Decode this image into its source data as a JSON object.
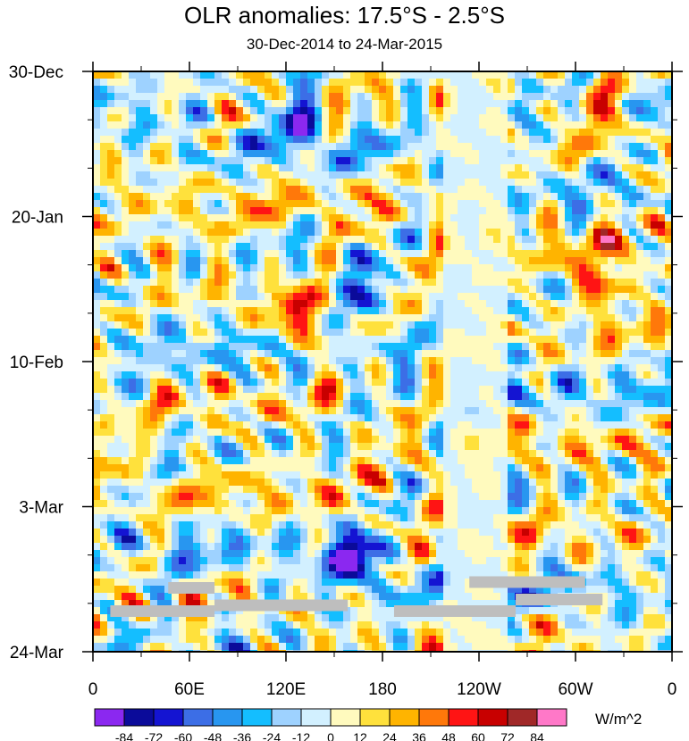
{
  "chart_data": {
    "type": "heatmap",
    "title": "OLR anomalies: 17.5°S - 2.5°S",
    "subtitle": "30-Dec-2014 to 24-Mar-2015",
    "x_ticks": [
      "0",
      "60E",
      "120E",
      "180",
      "120W",
      "60W",
      "0"
    ],
    "x_range_deg_east": [
      0,
      360
    ],
    "y_ticks": [
      "30-Dec",
      "20-Jan",
      "10-Feb",
      "3-Mar",
      "24-Mar"
    ],
    "y_range": [
      "2014-12-30",
      "2015-03-24"
    ],
    "y_direction": "time increases downward",
    "units": "W/m^2",
    "colorbar_levels": [
      -84,
      -72,
      -60,
      -48,
      -36,
      -24,
      -12,
      0,
      12,
      24,
      36,
      48,
      60,
      72,
      84
    ],
    "colorbar_labels": [
      "-84",
      "-72",
      "-60",
      "-48",
      "-36",
      "-24",
      "-12",
      "0",
      "12",
      "24",
      "36",
      "48",
      "60",
      "72",
      "84"
    ],
    "colorbar_colors": [
      "#8b28f0",
      "#0b0b9a",
      "#1414d2",
      "#3c6ee6",
      "#2896f0",
      "#14beff",
      "#9ed2ff",
      "#d2f0ff",
      "#fffabe",
      "#ffe13c",
      "#ffb400",
      "#ff780a",
      "#ff1414",
      "#c80000",
      "#a02828",
      "#ff78c8"
    ],
    "missing_color": "#bebebe",
    "grid": false,
    "features": [
      {
        "note": "strong negative anomaly",
        "lon": 160,
        "date": "2015-03-10",
        "value": -84
      },
      {
        "note": "negative anomaly cluster",
        "lon": 125,
        "date": "2015-01-05",
        "value": -60
      },
      {
        "note": "negative anomaly cluster",
        "lon": 165,
        "date": "2015-01-30",
        "value": -60
      },
      {
        "note": "positive anomaly",
        "lon": 130,
        "date": "2015-02-05",
        "value": 60
      },
      {
        "note": "positive anomaly",
        "lon": 315,
        "date": "2015-01-30",
        "value": 60
      },
      {
        "note": "positive anomaly",
        "lon": 310,
        "date": "2015-01-03",
        "value": 48
      },
      {
        "note": "near-zero band",
        "lon_range": [
          220,
          250
        ],
        "value": 0
      }
    ]
  }
}
